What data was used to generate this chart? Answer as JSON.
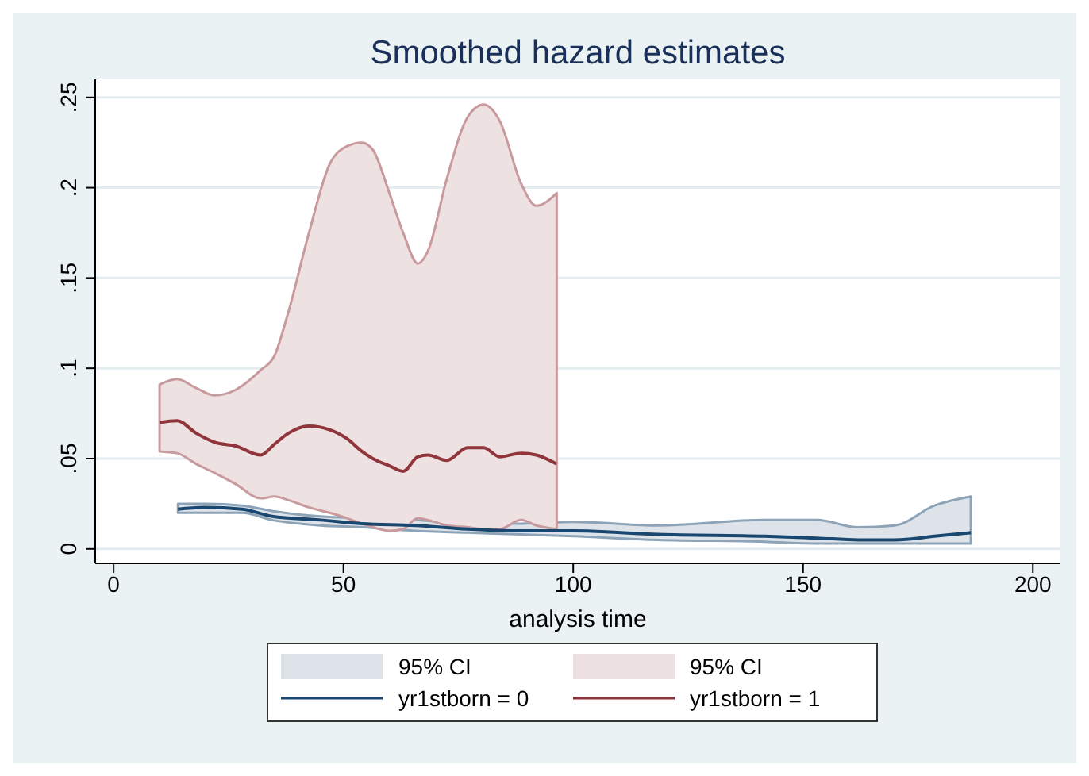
{
  "chart_data": {
    "type": "line",
    "title": "Smoothed hazard estimates",
    "xlabel": "analysis time",
    "annotations": [
      "95% CI",
      "95% CI"
    ],
    "xlim": [
      -4,
      206
    ],
    "xticks": [
      0,
      50,
      100,
      150,
      200
    ],
    "ylim": [
      -0.008,
      0.26
    ],
    "yticks": [
      {
        "value": 0,
        "label": "0"
      },
      {
        "value": 0.05,
        "label": ".05"
      },
      {
        "value": 0.1,
        "label": ".1"
      },
      {
        "value": 0.15,
        "label": ".15"
      },
      {
        "value": 0.2,
        "label": ".2"
      },
      {
        "value": 0.25,
        "label": ".25"
      }
    ],
    "grid": "y",
    "legend": "bottom",
    "series": [
      {
        "name": "yr1stborn = 0",
        "color": "#1a476f",
        "x": [
          14,
          20,
          28,
          34.5,
          45,
          54,
          65.6,
          77,
          88.7,
          100,
          118.5,
          141.6,
          153,
          162,
          170,
          178.6,
          186.5
        ],
        "values": [
          0.022,
          0.023,
          0.022,
          0.018,
          0.016,
          0.014,
          0.013,
          0.011,
          0.01,
          0.01,
          0.008,
          0.007,
          0.006,
          0.005,
          0.005,
          0.007,
          0.009
        ],
        "upper": [
          0.025,
          0.025,
          0.024,
          0.021,
          0.018,
          0.017,
          0.016,
          0.014,
          0.014,
          0.015,
          0.013,
          0.016,
          0.016,
          0.012,
          0.013,
          0.024,
          0.029
        ],
        "lower": [
          0.02,
          0.02,
          0.02,
          0.016,
          0.013,
          0.012,
          0.01,
          0.009,
          0.008,
          0.007,
          0.005,
          0.004,
          0.003,
          0.003,
          0.003,
          0.003,
          0.003
        ]
      },
      {
        "name": "yr1stborn = 1",
        "color": "#90353b",
        "x": [
          10,
          13.8,
          18,
          22,
          26.5,
          32,
          35,
          38,
          42.5,
          47,
          50.8,
          54,
          56.4,
          60,
          63,
          66.2,
          68.4,
          72.5,
          77,
          80.5,
          84,
          88.7,
          92,
          96.4
        ],
        "values": [
          0.07,
          0.071,
          0.064,
          0.059,
          0.057,
          0.052,
          0.058,
          0.064,
          0.068,
          0.066,
          0.061,
          0.054,
          0.05,
          0.046,
          0.043,
          0.051,
          0.052,
          0.049,
          0.056,
          0.056,
          0.051,
          0.053,
          0.052,
          0.047
        ],
        "upper": [
          0.091,
          0.094,
          0.089,
          0.085,
          0.088,
          0.099,
          0.107,
          0.131,
          0.175,
          0.213,
          0.223,
          0.225,
          0.221,
          0.197,
          0.175,
          0.158,
          0.165,
          0.205,
          0.239,
          0.246,
          0.237,
          0.202,
          0.19,
          0.197
        ],
        "lower": [
          0.054,
          0.053,
          0.047,
          0.042,
          0.036,
          0.028,
          0.029,
          0.027,
          0.023,
          0.02,
          0.017,
          0.014,
          0.012,
          0.01,
          0.011,
          0.017,
          0.016,
          0.013,
          0.012,
          0.011,
          0.011,
          0.016,
          0.013,
          0.011
        ]
      }
    ]
  }
}
